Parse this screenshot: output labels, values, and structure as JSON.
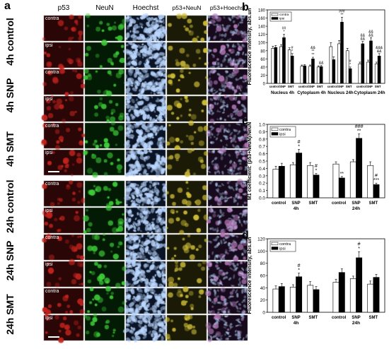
{
  "figure": {
    "panel_labels": [
      "a",
      "b",
      "c",
      "d"
    ],
    "scale_bar_color": "#ffffff"
  },
  "micrographs": {
    "columns": [
      "p53",
      "NeuN",
      "Hoechst",
      "p53+NeuN",
      "p53+Hoechst"
    ],
    "row_groups": [
      "4h control",
      "4h SNP",
      "4h SMT",
      "24h control",
      "24h SNP",
      "24h SMT"
    ],
    "row_tags": [
      "contra",
      "ipsi"
    ],
    "colors": {
      "p53": "#c4241f",
      "neun": "#3fd03a",
      "hoechst": "#bcd8ff",
      "merge_neun": "#d4c23a",
      "merge_hoechst": "#b47ab8"
    }
  },
  "chart_data": [
    {
      "panel": "b",
      "type": "bar",
      "ylabel": "Fluorescence intensity, abs.un",
      "ylim": [
        0,
        180
      ],
      "yticks": [
        0,
        20,
        40,
        60,
        80,
        100,
        120,
        140,
        160,
        180
      ],
      "legend": [
        "contra",
        "ipsi"
      ],
      "legend_position": "top-left",
      "groups": [
        "Nucleus 4h",
        "Cytoplasm 4h",
        "Nucleus 24h",
        "Cytoplasm 24h"
      ],
      "categories": [
        "control",
        "SNP",
        "SMT",
        "control",
        "SNP",
        "SMT",
        "control",
        "SNP",
        "SMT",
        "control",
        "SNP",
        "SMT"
      ],
      "series": [
        {
          "name": "contra",
          "values": [
            86,
            90,
            82,
            42,
            42,
            40,
            90,
            97,
            80,
            48,
            52,
            48
          ],
          "errors": [
            5,
            5,
            5,
            3,
            3,
            3,
            10,
            8,
            6,
            4,
            5,
            4
          ]
        },
        {
          "name": "ipsi",
          "values": [
            88,
            112,
            67,
            43,
            60,
            41,
            58,
            150,
            36,
            97,
            104,
            67
          ],
          "errors": [
            5,
            8,
            6,
            3,
            4,
            3,
            7,
            12,
            4,
            6,
            8,
            6
          ]
        }
      ],
      "annotations": [
        "",
        "##\n*",
        "#\n*",
        "",
        "&&\n**\n**",
        "&&",
        "",
        "###\n**",
        "#\n*",
        "&&\n&&",
        "&&\n&&",
        "&&&\n&&"
      ]
    },
    {
      "panel": "c",
      "type": "bar",
      "ylabel": "M1 coefficient: (p53+NeuN)/NeuN",
      "ylim": [
        0.0,
        1.0
      ],
      "yticks": [
        "0.0",
        "0.1",
        "0.2",
        "0.3",
        "0.4",
        "0.5",
        "0.6",
        "0.7",
        "0.8",
        "0.9",
        "1.0"
      ],
      "legend": [
        "contra",
        "ipsi"
      ],
      "legend_position": "top-left",
      "categories": [
        "control",
        "SNP",
        "SMT",
        "control",
        "SNP",
        "SMT"
      ],
      "group_labels": [
        "4h",
        "24h"
      ],
      "series": [
        {
          "name": "contra",
          "values": [
            0.39,
            0.45,
            0.44,
            0.46,
            0.49,
            0.44
          ],
          "errors": [
            0.04,
            0.03,
            0.04,
            0.03,
            0.03,
            0.05
          ]
        },
        {
          "name": "ipsi",
          "values": [
            0.43,
            0.61,
            0.31,
            0.27,
            0.81,
            0.18
          ],
          "errors": [
            0.04,
            0.05,
            0.02,
            0.02,
            0.06,
            0.02
          ]
        }
      ],
      "annotations": [
        "",
        "#\n*",
        "#\n*",
        "**",
        "###\n**",
        "#\n***"
      ]
    },
    {
      "panel": "d",
      "type": "bar",
      "ylabel": "Fluorescence intensity, abs.un",
      "ylim": [
        0,
        120
      ],
      "yticks": [
        0,
        20,
        40,
        60,
        80,
        100,
        120
      ],
      "legend": [
        "contra",
        "ipsi"
      ],
      "legend_position": "top-left",
      "categories": [
        "control",
        "SNP",
        "SMT",
        "control",
        "SNP",
        "SMT"
      ],
      "group_labels": [
        "4h",
        "24h"
      ],
      "series": [
        {
          "name": "contra",
          "values": [
            38,
            41,
            44,
            49,
            55,
            46
          ],
          "errors": [
            5,
            4,
            6,
            5,
            4,
            5
          ]
        },
        {
          "name": "ipsi",
          "values": [
            42,
            58,
            37,
            65,
            89,
            57
          ],
          "errors": [
            5,
            6,
            5,
            6,
            10,
            5
          ]
        }
      ],
      "annotations": [
        "",
        "#\n*",
        "",
        "",
        "#\n*",
        ""
      ]
    }
  ]
}
